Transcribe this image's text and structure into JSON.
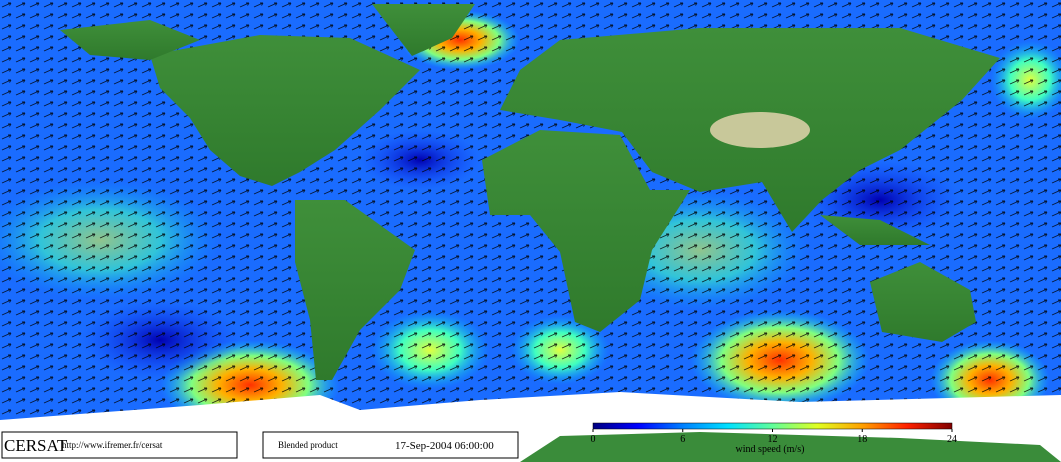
{
  "footer": {
    "logo": "CERSAT",
    "url": "http://www.ifremer.fr/cersat",
    "product": "Blended product",
    "timestamp": "17-Sep-2004 06:00:00"
  },
  "colorbar": {
    "label": "wind speed (m/s)",
    "range": [
      0,
      24
    ],
    "ticks": [
      0,
      6,
      12,
      18,
      24
    ],
    "colors": [
      "#000080",
      "#0000ff",
      "#0080ff",
      "#00e0ff",
      "#60ff9a",
      "#e0ff20",
      "#ffa000",
      "#ff2000",
      "#800000"
    ]
  }
}
